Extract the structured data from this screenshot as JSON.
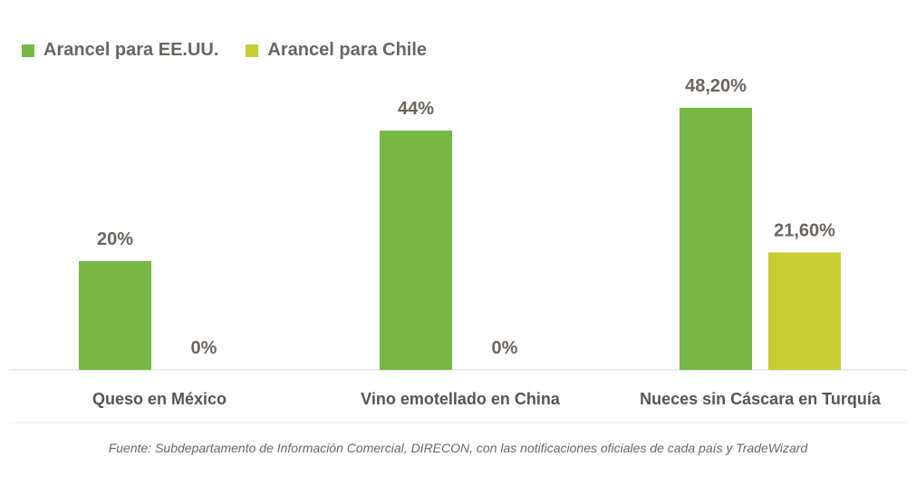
{
  "legend": [
    {
      "label": "Arancel para EE.UU.",
      "color": "#76b843"
    },
    {
      "label": "Arancel para Chile",
      "color": "#c6cd33"
    }
  ],
  "source": "Fuente: Subdepartamento de Información Comercial, DIRECON, con las notificaciones oficiales de cada país y TradeWizard",
  "chart_data": {
    "type": "bar",
    "categories": [
      "Queso en México",
      "Vino emotellado en China",
      "Nueces sin Cáscara en Turquía"
    ],
    "series": [
      {
        "name": "Arancel para EE.UU.",
        "values": [
          20,
          44,
          48.2
        ],
        "labels": [
          "20%",
          "44%",
          "48,20%"
        ],
        "color": "#76b843"
      },
      {
        "name": "Arancel para Chile",
        "values": [
          0,
          0,
          21.6
        ],
        "labels": [
          "0%",
          "0%",
          "21,60%"
        ],
        "color": "#c6cd33"
      }
    ],
    "ylim": [
      0,
      50
    ],
    "grid": false,
    "legend_position": "top-left"
  }
}
